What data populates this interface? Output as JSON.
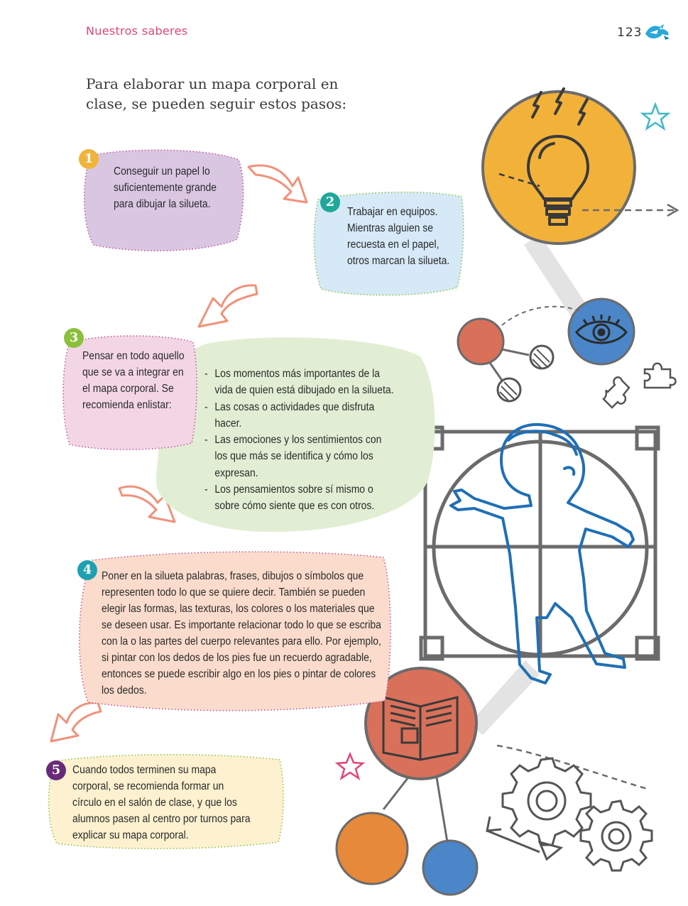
{
  "header": {
    "section_title": "Nuestros saberes",
    "page_number": "123"
  },
  "intro": "Para elaborar un mapa corporal en clase, se pueden seguir estos pasos:",
  "steps": [
    {
      "number": "1",
      "text": "Conseguir un papel lo suficientemente grande para dibujar la silueta.",
      "badge_color": "#f0b43c",
      "fill_color": "#d9c7e2",
      "border_color": "#c4579c"
    },
    {
      "number": "2",
      "text": "Trabajar en equipos. Mientras alguien se recuesta en el papel, otros marcan la silueta.",
      "badge_color": "#1fa89a",
      "fill_color": "#d5e9f6",
      "border_color": "#8bc34a"
    },
    {
      "number": "3",
      "text": "Pensar en todo aquello que se va a integrar en el mapa corporal. Se recomienda enlistar:",
      "badge_color": "#8bc03a",
      "fill_color": "#f3d6e6",
      "border_color": "#c4579c"
    },
    {
      "number": "4",
      "text": "Poner en la silueta palabras, frases, dibujos o símbolos que representen todo lo que se quiere decir. También se pueden elegir las formas, las texturas, los colores o los materiales que se deseen usar. Es importante relacionar todo lo que se escriba con la o las partes del cuerpo relevantes para ello. Por ejemplo, si pintar con los dedos de los pies fue un recuerdo agradable, entonces se puede escribir algo en los pies o pintar de colores los dedos.",
      "badge_color": "#1fa0b0",
      "fill_color": "#fbdccc",
      "border_color": "#c4579c"
    },
    {
      "number": "5",
      "text": "Cuando todos terminen su mapa corporal, se recomienda formar un círculo en el salón de clase, y que los alumnos pasen al centro por turnos para explicar su mapa corporal.",
      "badge_color": "#6a2a7a",
      "fill_color": "#fdf1cf",
      "border_color": "#8bc34a"
    }
  ],
  "step3_list": [
    "Los momentos más importantes de la vida de quien está dibujado en la silueta.",
    "Las cosas o actividades que disfruta hacer.",
    "Las emociones y los sentimientos con los que más se identifica y cómo los expresan.",
    "Los pensamientos sobre sí mismo o sobre cómo siente que es con otros."
  ],
  "colors": {
    "header_pink": "#e0457b",
    "arrow_salmon": "#f0917a",
    "yellow_circle": "#f2b23a",
    "blue_circle": "#4a86c8",
    "red_circle": "#d9705a",
    "orange_circle": "#e6893a",
    "figure_blue": "#1f6fb5",
    "frame_gray": "#6b6b6b"
  },
  "icons": [
    "bird-logo-icon",
    "lightbulb-icon",
    "eye-icon",
    "puzzle-icon",
    "book-icon",
    "gears-icon",
    "star-icon",
    "child-silhouette-icon"
  ]
}
